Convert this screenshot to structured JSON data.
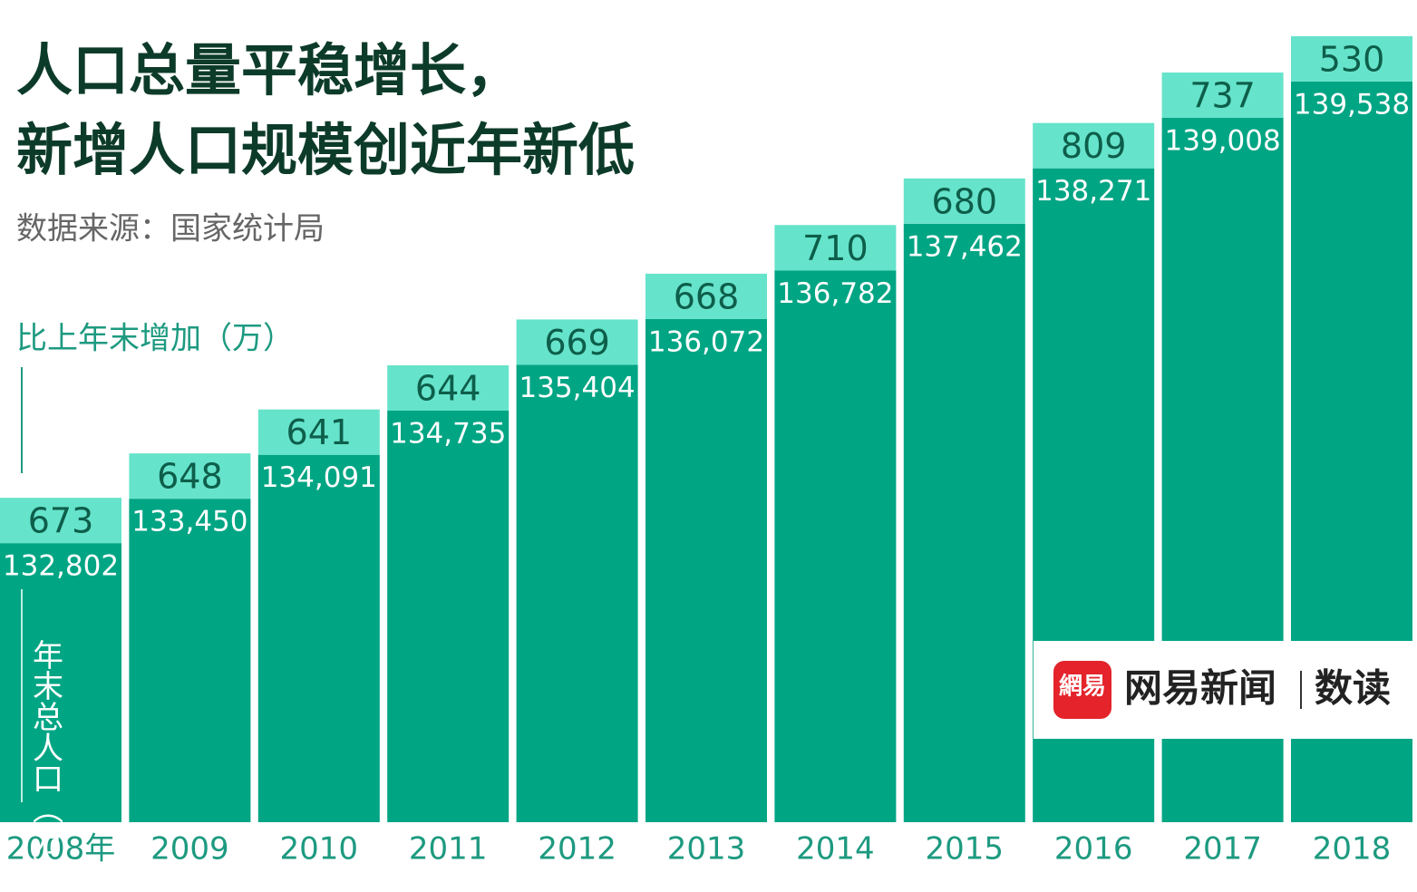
{
  "chart_data": {
    "type": "bar",
    "title": "人口总量平稳增长，",
    "subtitle": "新增人口规模创近年新低",
    "source": "数据来源：国家统计局",
    "legend_label": "比上年末增加（万）",
    "y_label": "年末总人口（万）",
    "logo": "网易新闻",
    "logo_section": "数读",
    "categories": [
      "2008年",
      "2009",
      "2010",
      "2011",
      "2012",
      "2013",
      "2014",
      "2015",
      "2016",
      "2017",
      "2018"
    ],
    "series": [
      {
        "name": "年末总人口（万）",
        "color": "#00a584",
        "values": [
          132802,
          133450,
          134091,
          134735,
          135404,
          136072,
          136782,
          137462,
          138271,
          139008,
          139538
        ],
        "value_labels": [
          "132,802",
          "133,450",
          "134,091",
          "134,735",
          "135,404",
          "136,072",
          "136,782",
          "137,462",
          "138,271",
          "139,008",
          "139,538"
        ]
      },
      {
        "name": "比上年末增加（万）",
        "color": "#66e3cb",
        "values": [
          673,
          648,
          641,
          644,
          669,
          668,
          710,
          680,
          809,
          737,
          530
        ]
      }
    ],
    "ylim": [
      128730,
      140727
    ]
  }
}
